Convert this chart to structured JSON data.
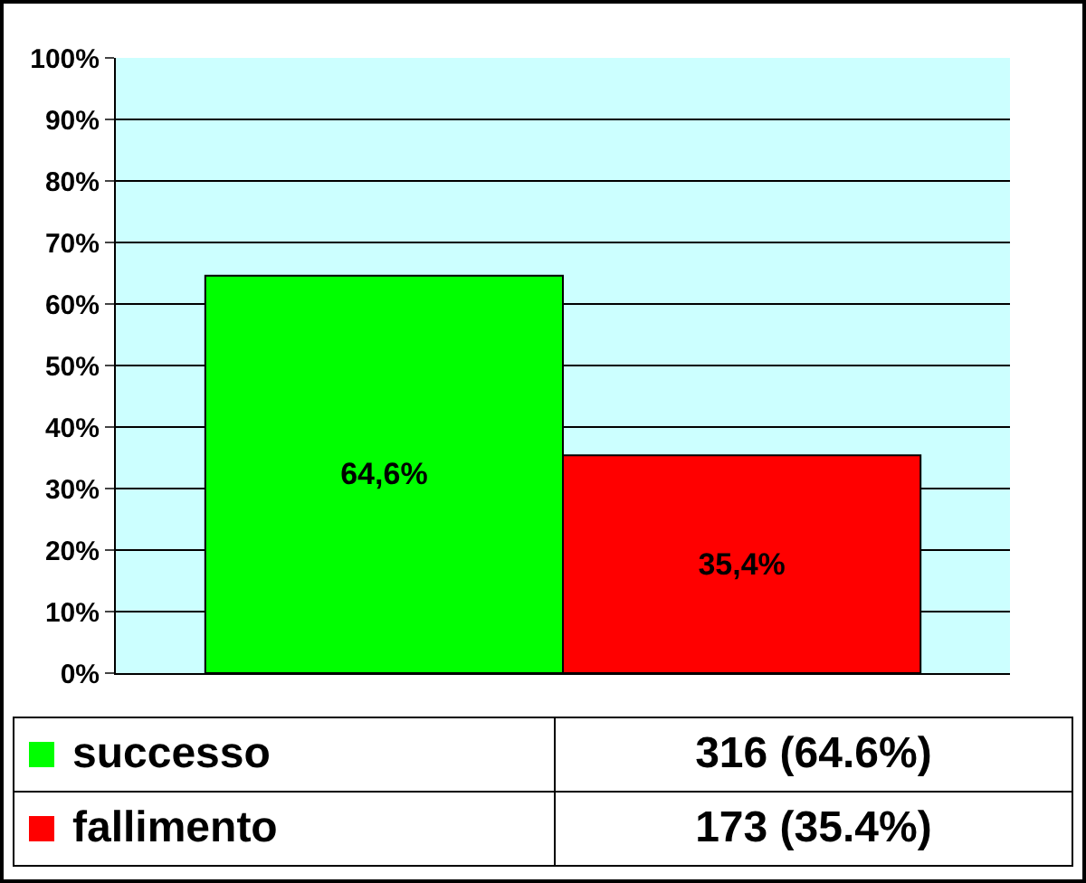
{
  "chart_data": {
    "type": "bar",
    "categories": [
      null
    ],
    "series": [
      {
        "name": "successo",
        "color": "#00ff00",
        "values": [
          64.6
        ],
        "value_labels": [
          "64,6%"
        ]
      },
      {
        "name": "fallimento",
        "color": "#ff0000",
        "values": [
          35.4
        ],
        "value_labels": [
          "35,4%"
        ]
      }
    ],
    "ylim": [
      0,
      100
    ],
    "yticks": [
      {
        "value": 0,
        "label": "0%"
      },
      {
        "value": 10,
        "label": "10%"
      },
      {
        "value": 20,
        "label": "20%"
      },
      {
        "value": 30,
        "label": "30%"
      },
      {
        "value": 40,
        "label": "40%"
      },
      {
        "value": 50,
        "label": "50%"
      },
      {
        "value": 60,
        "label": "60%"
      },
      {
        "value": 70,
        "label": "70%"
      },
      {
        "value": 80,
        "label": "80%"
      },
      {
        "value": 90,
        "label": "90%"
      },
      {
        "value": 100,
        "label": "100%"
      }
    ],
    "grid": "y",
    "tick_labels": "y",
    "legend": "bottom",
    "annotations": [
      "316 (64.6%)",
      "173 (35.4%)"
    ]
  }
}
